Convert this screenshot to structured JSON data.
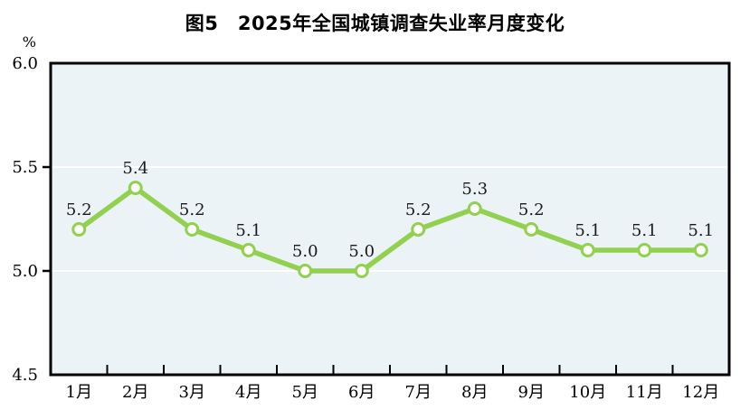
{
  "figure": {
    "title": "图5　2025年全国城镇调查失业率月度变化"
  },
  "chart_data": {
    "type": "line",
    "title": "图5　2025年全国城镇调查失业率月度变化",
    "unit_label": "%",
    "categories": [
      "1月",
      "2月",
      "3月",
      "4月",
      "5月",
      "6月",
      "7月",
      "8月",
      "9月",
      "10月",
      "11月",
      "12月"
    ],
    "series": [
      {
        "name": "城镇调查失业率",
        "values": [
          5.2,
          5.4,
          5.2,
          5.1,
          5.0,
          5.0,
          5.2,
          5.3,
          5.2,
          5.1,
          5.1,
          5.1
        ]
      }
    ],
    "data_labels": [
      "5.2",
      "5.4",
      "5.2",
      "5.1",
      "5.0",
      "5.0",
      "5.2",
      "5.3",
      "5.2",
      "5.1",
      "5.1",
      "5.1"
    ],
    "ylim": [
      4.5,
      6.0
    ],
    "ytick_values": [
      6.0,
      5.5,
      5.0,
      4.5
    ],
    "ytick_labels": [
      "6.0",
      "5.5",
      "5.0",
      "4.5"
    ],
    "grid": "horizontal",
    "legend": false,
    "colors": {
      "line": "#92d050",
      "marker_fill": "#ffffff",
      "marker_stroke": "#92d050",
      "plot_background": "#ebf3f7",
      "gridline": "#ffffff",
      "axis": "#000000",
      "label_text": "#1a1a1a"
    }
  }
}
